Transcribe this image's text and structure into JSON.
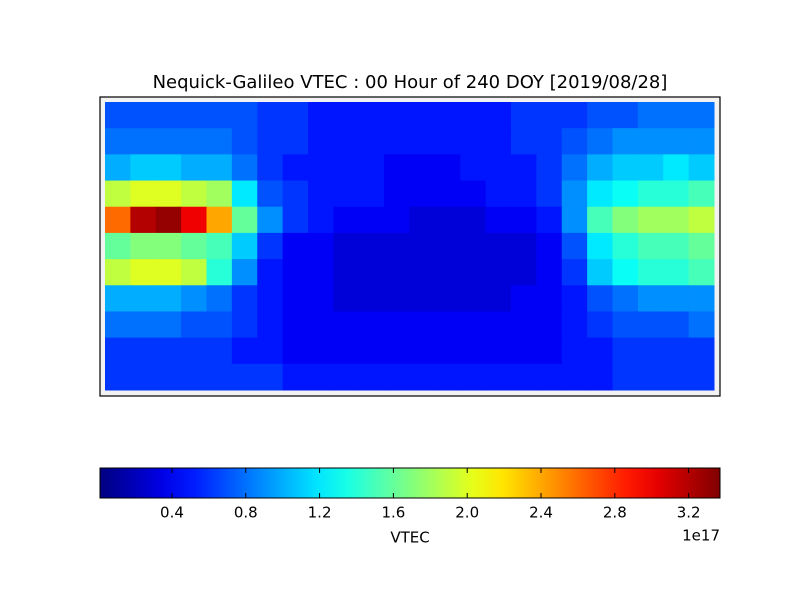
{
  "chart_data": {
    "type": "heatmap",
    "title": "Nequick-Galileo VTEC : 00 Hour of 240 DOY [2019/08/28]",
    "colorbar_label": "VTEC",
    "colorbar_offset": "1e17",
    "colormap": "jet",
    "zlim": [
      0.01,
      3.37
    ],
    "zticks": [
      0.4,
      0.8,
      1.2,
      1.6,
      {
        "value": 2,
        "label": "2.0"
      },
      2.4,
      2.8,
      3.2
    ],
    "values": [
      [
        0.7,
        0.7,
        0.7,
        0.7,
        0.7,
        0.7,
        0.6,
        0.6,
        0.5,
        0.5,
        0.5,
        0.5,
        0.5,
        0.5,
        0.5,
        0.5,
        0.6,
        0.6,
        0.6,
        0.7,
        0.7,
        0.8,
        0.8,
        0.8
      ],
      [
        0.8,
        0.8,
        0.8,
        0.8,
        0.8,
        0.7,
        0.6,
        0.6,
        0.5,
        0.5,
        0.5,
        0.5,
        0.5,
        0.5,
        0.5,
        0.5,
        0.6,
        0.6,
        0.7,
        0.8,
        0.9,
        0.9,
        0.9,
        0.9
      ],
      [
        1.0,
        1.1,
        1.1,
        1.0,
        1.0,
        0.8,
        0.6,
        0.5,
        0.5,
        0.5,
        0.5,
        0.4,
        0.4,
        0.4,
        0.5,
        0.5,
        0.5,
        0.6,
        0.8,
        1.0,
        1.1,
        1.1,
        1.2,
        1.1
      ],
      [
        1.9,
        2.0,
        2.0,
        1.9,
        1.8,
        1.2,
        0.7,
        0.6,
        0.5,
        0.5,
        0.5,
        0.4,
        0.4,
        0.4,
        0.4,
        0.5,
        0.5,
        0.6,
        0.9,
        1.2,
        1.3,
        1.4,
        1.4,
        1.5
      ],
      [
        2.6,
        3.2,
        3.3,
        3.0,
        2.4,
        1.6,
        0.9,
        0.6,
        0.5,
        0.4,
        0.4,
        0.4,
        0.3,
        0.3,
        0.3,
        0.4,
        0.4,
        0.5,
        0.9,
        1.5,
        1.7,
        1.8,
        1.8,
        1.9
      ],
      [
        1.6,
        1.7,
        1.7,
        1.6,
        1.5,
        1.1,
        0.6,
        0.4,
        0.4,
        0.3,
        0.3,
        0.3,
        0.3,
        0.3,
        0.3,
        0.3,
        0.3,
        0.4,
        0.7,
        1.2,
        1.4,
        1.5,
        1.5,
        1.6
      ],
      [
        1.9,
        2.0,
        2.0,
        1.9,
        1.4,
        0.9,
        0.5,
        0.4,
        0.4,
        0.3,
        0.3,
        0.3,
        0.3,
        0.3,
        0.3,
        0.3,
        0.3,
        0.4,
        0.6,
        1.1,
        1.3,
        1.4,
        1.4,
        1.5
      ],
      [
        1.0,
        1.0,
        1.0,
        0.9,
        0.8,
        0.6,
        0.5,
        0.4,
        0.4,
        0.3,
        0.3,
        0.3,
        0.3,
        0.3,
        0.3,
        0.3,
        0.4,
        0.4,
        0.5,
        0.7,
        0.8,
        0.9,
        0.9,
        0.9
      ],
      [
        0.8,
        0.8,
        0.8,
        0.7,
        0.7,
        0.6,
        0.5,
        0.4,
        0.4,
        0.4,
        0.4,
        0.4,
        0.4,
        0.4,
        0.4,
        0.4,
        0.4,
        0.4,
        0.5,
        0.6,
        0.7,
        0.7,
        0.7,
        0.8
      ],
      [
        0.6,
        0.6,
        0.6,
        0.6,
        0.6,
        0.5,
        0.5,
        0.4,
        0.4,
        0.4,
        0.4,
        0.4,
        0.4,
        0.4,
        0.4,
        0.4,
        0.4,
        0.4,
        0.5,
        0.5,
        0.6,
        0.6,
        0.6,
        0.6
      ],
      [
        0.6,
        0.6,
        0.6,
        0.6,
        0.6,
        0.6,
        0.6,
        0.5,
        0.5,
        0.5,
        0.5,
        0.5,
        0.5,
        0.5,
        0.5,
        0.5,
        0.5,
        0.5,
        0.5,
        0.5,
        0.6,
        0.6,
        0.6,
        0.6
      ]
    ]
  }
}
